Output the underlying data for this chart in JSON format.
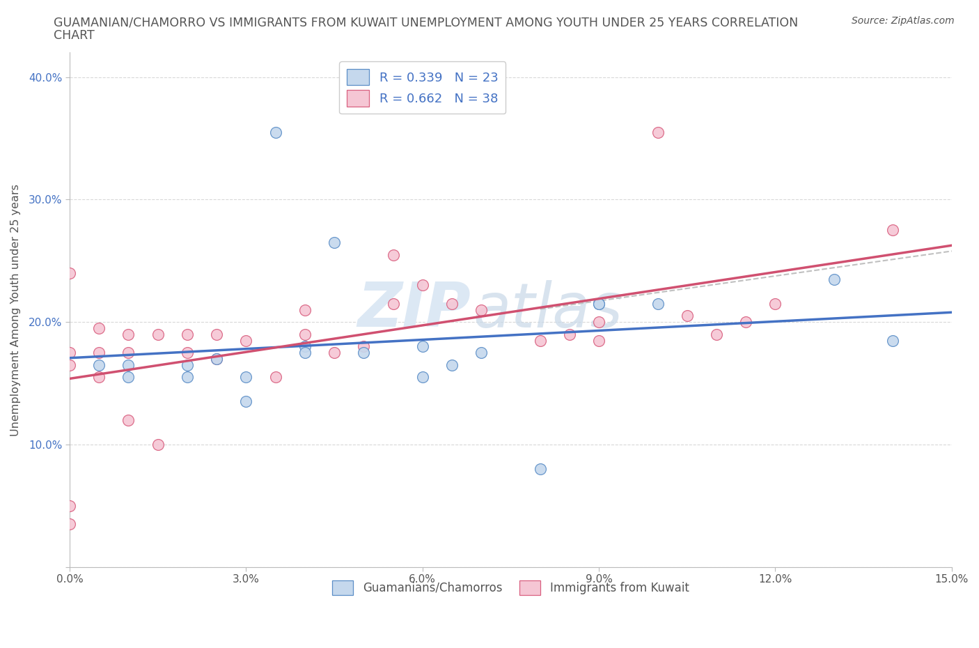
{
  "title_line1": "GUAMANIAN/CHAMORRO VS IMMIGRANTS FROM KUWAIT UNEMPLOYMENT AMONG YOUTH UNDER 25 YEARS CORRELATION",
  "title_line2": "CHART",
  "source_text": "Source: ZipAtlas.com",
  "ylabel": "Unemployment Among Youth under 25 years",
  "xlim": [
    0.0,
    0.15
  ],
  "ylim": [
    0.0,
    0.42
  ],
  "xticks": [
    0.0,
    0.03,
    0.06,
    0.09,
    0.12,
    0.15
  ],
  "xtick_labels": [
    "0.0%",
    "3.0%",
    "6.0%",
    "9.0%",
    "12.0%",
    "15.0%"
  ],
  "yticks": [
    0.0,
    0.1,
    0.2,
    0.3,
    0.4
  ],
  "ytick_labels": [
    "",
    "10.0%",
    "20.0%",
    "30.0%",
    "40.0%"
  ],
  "blue_scatter_x": [
    0.035,
    0.005,
    0.01,
    0.01,
    0.02,
    0.025,
    0.03,
    0.04,
    0.045,
    0.05,
    0.06,
    0.065,
    0.07,
    0.08,
    0.09,
    0.09,
    0.1,
    0.13,
    0.14,
    0.02,
    0.03,
    0.04,
    0.06
  ],
  "blue_scatter_y": [
    0.355,
    0.165,
    0.155,
    0.165,
    0.165,
    0.17,
    0.155,
    0.18,
    0.265,
    0.175,
    0.18,
    0.165,
    0.175,
    0.08,
    0.215,
    0.215,
    0.215,
    0.235,
    0.185,
    0.155,
    0.135,
    0.175,
    0.155
  ],
  "pink_scatter_x": [
    0.0,
    0.0,
    0.0,
    0.0,
    0.0,
    0.005,
    0.005,
    0.005,
    0.01,
    0.01,
    0.01,
    0.015,
    0.015,
    0.02,
    0.02,
    0.025,
    0.025,
    0.03,
    0.035,
    0.04,
    0.04,
    0.045,
    0.05,
    0.055,
    0.055,
    0.06,
    0.065,
    0.07,
    0.08,
    0.085,
    0.09,
    0.09,
    0.1,
    0.105,
    0.11,
    0.115,
    0.12,
    0.14
  ],
  "pink_scatter_y": [
    0.24,
    0.165,
    0.175,
    0.05,
    0.035,
    0.175,
    0.155,
    0.195,
    0.175,
    0.19,
    0.12,
    0.19,
    0.1,
    0.19,
    0.175,
    0.19,
    0.17,
    0.185,
    0.155,
    0.21,
    0.19,
    0.175,
    0.18,
    0.255,
    0.215,
    0.23,
    0.215,
    0.21,
    0.185,
    0.19,
    0.2,
    0.185,
    0.355,
    0.205,
    0.19,
    0.2,
    0.215,
    0.275
  ],
  "blue_R": 0.339,
  "blue_N": 23,
  "pink_R": 0.662,
  "pink_N": 38,
  "blue_dot_color": "#c5d8ed",
  "blue_dot_edge": "#5b8ec7",
  "pink_dot_color": "#f5c6d4",
  "pink_dot_edge": "#d96080",
  "blue_line_color": "#4472c4",
  "pink_line_color": "#d05070",
  "gray_dash_color": "#c0c0c0",
  "text_color": "#555555",
  "ytick_color": "#4472c4",
  "grid_color": "#d8d8d8",
  "legend_label_blue": "Guamanians/Chamorros",
  "legend_label_pink": "Immigrants from Kuwait",
  "background_color": "#ffffff",
  "watermark_line1": "ZIP",
  "watermark_line2": "atlas"
}
